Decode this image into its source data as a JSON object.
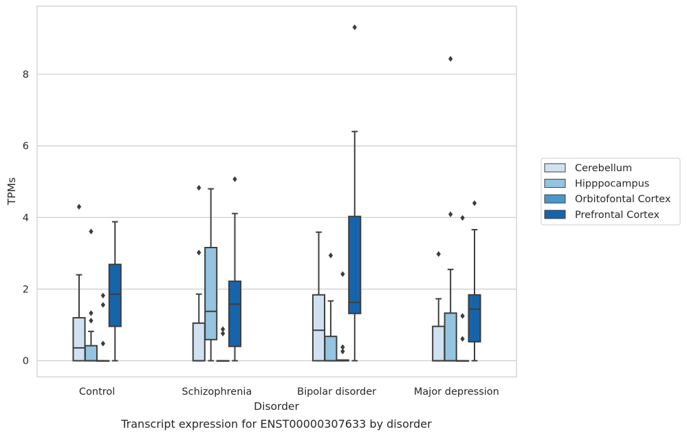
{
  "chart_data": {
    "type": "box",
    "title": "",
    "caption": "Transcript expression for ENST00000307633 by disorder",
    "xlabel": "Disorder",
    "ylabel": "TPMs",
    "categories": [
      "Control",
      "Schizophrenia",
      "Bipolar disorder",
      "Major depression"
    ],
    "ylim": [
      -0.45,
      9.9
    ],
    "yticks": [
      0,
      2,
      4,
      6,
      8
    ],
    "grid": "horizontal",
    "legend_position": "right",
    "series": [
      {
        "name": "Cerebellum",
        "color": "#d0e1f2",
        "boxes": [
          {
            "min": 0,
            "q1": 0,
            "median": 0.36,
            "q3": 1.2,
            "max": 2.4,
            "outliers": [
              4.3
            ]
          },
          {
            "min": 0,
            "q1": 0,
            "median": 0,
            "q3": 1.05,
            "max": 1.86,
            "outliers": [
              3.02,
              4.83
            ]
          },
          {
            "min": 0,
            "q1": 0,
            "median": 0.85,
            "q3": 1.84,
            "max": 3.59,
            "outliers": []
          },
          {
            "min": 0,
            "q1": 0,
            "median": 0,
            "q3": 0.96,
            "max": 1.73,
            "outliers": [
              2.98
            ]
          }
        ]
      },
      {
        "name": "Hipppocampus",
        "color": "#94c4df",
        "boxes": [
          {
            "min": 0,
            "q1": 0,
            "median": 0.0,
            "q3": 0.42,
            "max": 0.82,
            "outliers": [
              1.12,
              1.33,
              3.61
            ]
          },
          {
            "min": 0,
            "q1": 0.59,
            "median": 1.38,
            "q3": 3.16,
            "max": 4.8,
            "outliers": []
          },
          {
            "min": 0,
            "q1": 0,
            "median": 0,
            "q3": 0.68,
            "max": 1.67,
            "outliers": [
              2.94
            ]
          },
          {
            "min": 0,
            "q1": 0,
            "median": 0,
            "q3": 1.33,
            "max": 2.55,
            "outliers": [
              4.09,
              8.43
            ]
          }
        ]
      },
      {
        "name": "Orbitofontal Cortex",
        "color": "#4a98c9",
        "boxes": [
          {
            "min": 0,
            "q1": 0,
            "median": 0,
            "q3": 0,
            "max": 0,
            "outliers": [
              0.48,
              1.56,
              1.82
            ]
          },
          {
            "min": 0,
            "q1": 0,
            "median": 0,
            "q3": 0,
            "max": 0,
            "outliers": [
              0.76,
              0.88
            ]
          },
          {
            "min": 0,
            "q1": 0,
            "median": 0,
            "q3": 0.02,
            "max": 0.02,
            "outliers": [
              0.26,
              0.38,
              2.42
            ]
          },
          {
            "min": 0,
            "q1": 0,
            "median": 0,
            "q3": 0,
            "max": 0,
            "outliers": [
              0.61,
              1.25,
              3.99
            ]
          }
        ]
      },
      {
        "name": "Prefrontal Cortex",
        "color": "#1764ab",
        "boxes": [
          {
            "min": 0,
            "q1": 0.96,
            "median": 1.86,
            "q3": 2.69,
            "max": 3.88,
            "outliers": []
          },
          {
            "min": 0,
            "q1": 0.4,
            "median": 1.58,
            "q3": 2.22,
            "max": 4.11,
            "outliers": [
              5.07
            ]
          },
          {
            "min": 0,
            "q1": 1.32,
            "median": 1.63,
            "q3": 4.03,
            "max": 6.4,
            "outliers": [
              9.31
            ]
          },
          {
            "min": 0,
            "q1": 0.53,
            "median": 1.44,
            "q3": 1.84,
            "max": 3.66,
            "outliers": [
              4.4
            ]
          }
        ]
      }
    ]
  }
}
